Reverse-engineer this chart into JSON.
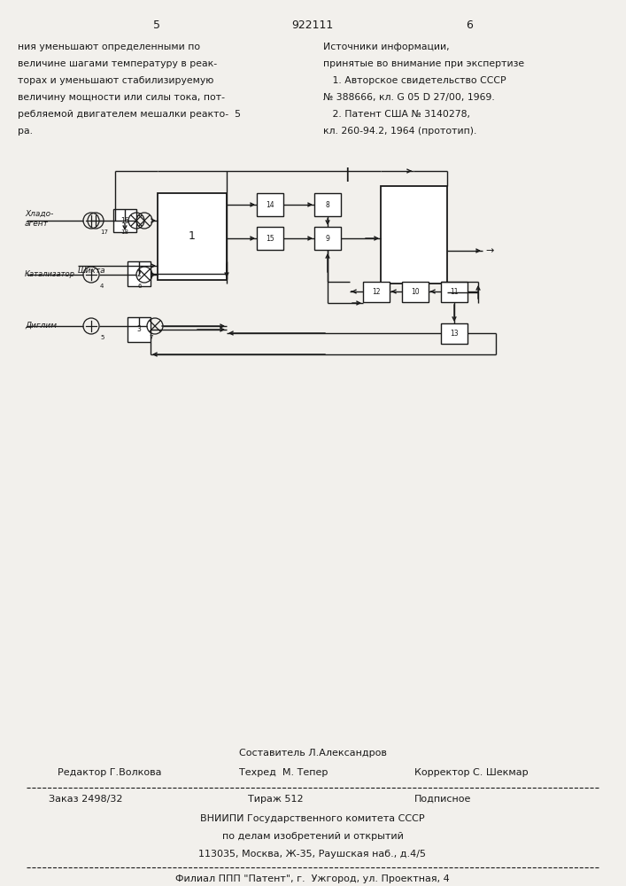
{
  "bg_color": "#f2f0ec",
  "text_color": "#1a1a1a",
  "header": {
    "left_num": "5",
    "center_num": "922111",
    "right_num": "6"
  },
  "left_col": [
    "ния уменьшают определенными по",
    "величине шагами температуру в реак-",
    "торах и уменьшают стабилизируемую",
    "величину мощности или силы тока, пот-",
    "ребляемой двигателем мешалки реакто-  5",
    "ра."
  ],
  "right_col": [
    "Источники информации,",
    "принятые во внимание при экспертизе",
    "   1. Авторское свидетельство СССР",
    "№ 388666, кл. G 05 D 27/00, 1969.",
    "   2. Патент США № 3140278,",
    "кл. 260-94.2, 1964 (прототип)."
  ],
  "footer": {
    "sostavitel": "Составитель Л.Александров",
    "redaktor": "Редактор Г.Волкова",
    "tehred": "Техред  М. Тепер",
    "korrektor": "Корректор С. Шекмар",
    "zakaz": "Заказ 2498/32",
    "tirazh": "Тираж 512",
    "podpisnoe": "Подписное",
    "vniip1": "ВНИИПИ Государственного комитета СССР",
    "vniip2": "по делам изобретений и открытий",
    "vniip3": "113035, Москва, Ж-35, Раушская наб., д.4/5",
    "filial": "Филиал ППП \"Патент\", г.  Ужгород, ул. Проектная, 4"
  }
}
